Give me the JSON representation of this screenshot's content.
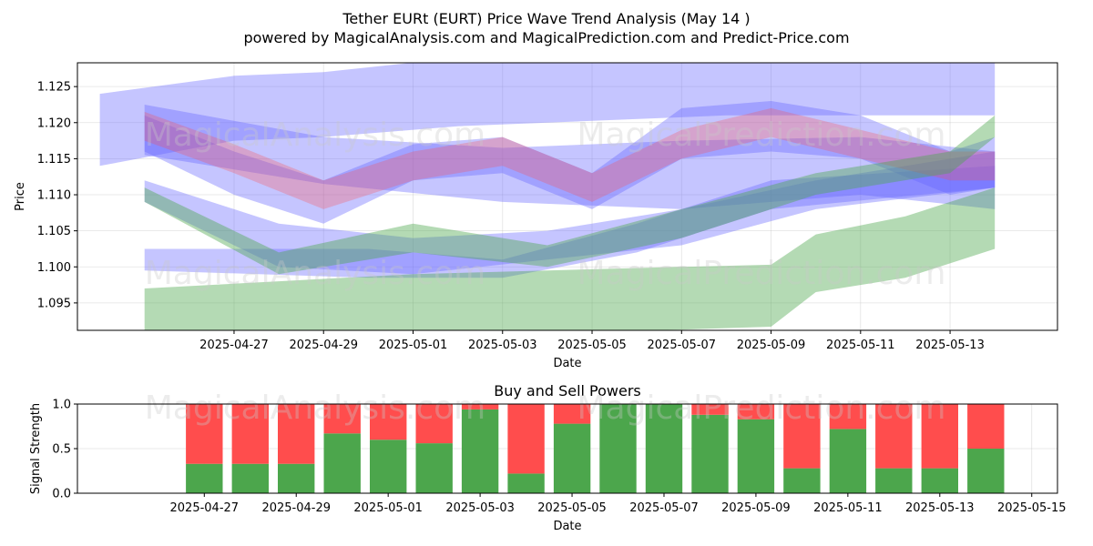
{
  "title": "Tether EURt (EURT) Price Wave Trend Analysis (May 14 )",
  "subtitle": "powered by MagicalAnalysis.com and MagicalPrediction.com and Predict-Price.com",
  "watermarks": [
    "MagicalAnalysis.com",
    "MagicalPrediction.com"
  ],
  "colors": {
    "blue": "#6666ff",
    "green": "#4ca64c",
    "red": "#ff4d4d"
  },
  "chart_data": [
    {
      "type": "area",
      "xlabel": "Date",
      "ylabel": "Price",
      "ylim": [
        1.0912,
        1.1283
      ],
      "xlim": [
        "2025-04-25",
        "2025-05-14"
      ],
      "x_ticks": [
        "2025-04-27",
        "2025-04-29",
        "2025-05-01",
        "2025-05-03",
        "2025-05-05",
        "2025-05-07",
        "2025-05-09",
        "2025-05-11",
        "2025-05-13"
      ],
      "y_ticks": [
        1.095,
        1.1,
        1.105,
        1.11,
        1.115,
        1.12,
        1.125
      ],
      "grid": true,
      "series": [
        {
          "color": "blue",
          "x": [
            "2025-04-24",
            "2025-04-27",
            "2025-04-29",
            "2025-05-02",
            "2025-05-04",
            "2025-05-08",
            "2025-05-11",
            "2025-05-14"
          ],
          "upper": [
            1.124,
            1.1265,
            1.127,
            1.129,
            1.129,
            1.129,
            1.129,
            1.129
          ],
          "lower": [
            1.114,
            1.1175,
            1.118,
            1.1195,
            1.12,
            1.121,
            1.121,
            1.121
          ]
        },
        {
          "color": "blue",
          "x": [
            "2025-04-25",
            "2025-04-29",
            "2025-05-03",
            "2025-05-07",
            "2025-05-11",
            "2025-05-14"
          ],
          "upper": [
            1.1225,
            1.118,
            1.1165,
            1.1175,
            1.118,
            1.116
          ],
          "lower": [
            1.1155,
            1.1115,
            1.109,
            1.108,
            1.11,
            1.108
          ]
        },
        {
          "color": "blue",
          "x": [
            "2025-04-25",
            "2025-04-27",
            "2025-04-29",
            "2025-05-01",
            "2025-05-03",
            "2025-05-05",
            "2025-05-07",
            "2025-05-09",
            "2025-05-11",
            "2025-05-13",
            "2025-05-14"
          ],
          "upper": [
            1.121,
            1.116,
            1.112,
            1.117,
            1.118,
            1.113,
            1.122,
            1.123,
            1.121,
            1.116,
            1.118
          ],
          "lower": [
            1.116,
            1.11,
            1.106,
            1.112,
            1.113,
            1.108,
            1.115,
            1.116,
            1.115,
            1.11,
            1.111
          ]
        },
        {
          "color": "blue",
          "x": [
            "2025-04-25",
            "2025-04-28",
            "2025-05-01",
            "2025-05-04",
            "2025-05-07",
            "2025-05-10",
            "2025-05-14"
          ],
          "upper": [
            1.112,
            1.106,
            1.104,
            1.105,
            1.108,
            1.112,
            1.116
          ],
          "lower": [
            1.109,
            1.1,
            1.099,
            1.101,
            1.103,
            1.108,
            1.111
          ]
        },
        {
          "color": "blue",
          "x": [
            "2025-04-25",
            "2025-04-30",
            "2025-05-03",
            "2025-05-06",
            "2025-05-09",
            "2025-05-14"
          ],
          "upper": [
            1.1025,
            1.1025,
            1.101,
            1.106,
            1.112,
            1.114
          ],
          "lower": [
            1.0995,
            1.0985,
            1.0985,
            1.102,
            1.108,
            1.111
          ]
        },
        {
          "color": "red",
          "x": [
            "2025-04-25",
            "2025-04-27",
            "2025-04-29",
            "2025-04-31",
            "2025-05-03",
            "2025-05-05",
            "2025-05-07",
            "2025-05-09",
            "2025-05-11",
            "2025-05-13",
            "2025-05-14"
          ],
          "upper": [
            1.1215,
            1.117,
            1.112,
            1.116,
            1.118,
            1.113,
            1.119,
            1.122,
            1.119,
            1.116,
            1.116
          ],
          "lower": [
            1.1175,
            1.113,
            1.108,
            1.112,
            1.114,
            1.109,
            1.115,
            1.118,
            1.115,
            1.112,
            1.112
          ]
        },
        {
          "color": "green",
          "x": [
            "2025-04-25",
            "2025-04-28",
            "2025-05-01",
            "2025-05-04",
            "2025-05-07",
            "2025-05-09",
            "2025-05-10",
            "2025-05-12",
            "2025-05-14"
          ],
          "upper": [
            1.097,
            1.098,
            1.099,
            1.0995,
            1.1,
            1.1003,
            1.1045,
            1.107,
            1.111
          ],
          "lower": [
            1.091,
            1.091,
            1.091,
            1.091,
            1.0913,
            1.0917,
            1.0965,
            1.0985,
            1.1025
          ]
        },
        {
          "color": "green",
          "x": [
            "2025-04-25",
            "2025-04-28",
            "2025-05-01",
            "2025-05-04",
            "2025-05-07",
            "2025-05-10",
            "2025-05-13",
            "2025-05-14"
          ],
          "upper": [
            1.111,
            1.102,
            1.106,
            1.103,
            1.108,
            1.113,
            1.116,
            1.121
          ],
          "lower": [
            1.109,
            1.099,
            1.102,
            1.1,
            1.104,
            1.11,
            1.113,
            1.118
          ]
        }
      ]
    },
    {
      "type": "bar",
      "title": "Buy and Sell Powers",
      "xlabel": "Date",
      "ylabel": "Signal Strength",
      "ylim": [
        0,
        1.0
      ],
      "xlim": [
        "2025-04-25",
        "2025-05-15"
      ],
      "x_ticks": [
        "2025-04-27",
        "2025-04-29",
        "2025-05-01",
        "2025-05-03",
        "2025-05-05",
        "2025-05-07",
        "2025-05-09",
        "2025-05-11",
        "2025-05-13",
        "2025-05-15"
      ],
      "y_ticks": [
        0.0,
        0.5,
        1.0
      ],
      "y_tick_labels": [
        "0.0",
        "0.5",
        "1.0"
      ],
      "grid": true,
      "categories": [
        "2025-04-27",
        "2025-04-28",
        "2025-04-29",
        "2025-04-30",
        "2025-05-01",
        "2025-05-02",
        "2025-05-03",
        "2025-05-04",
        "2025-05-05",
        "2025-05-06",
        "2025-05-07",
        "2025-05-08",
        "2025-05-09",
        "2025-05-10",
        "2025-05-11",
        "2025-05-12",
        "2025-05-13",
        "2025-05-14"
      ],
      "series": [
        {
          "color": "green",
          "values": [
            0.33,
            0.33,
            0.33,
            0.67,
            0.6,
            0.56,
            0.94,
            0.22,
            0.78,
            1.0,
            1.0,
            0.88,
            0.83,
            0.28,
            0.72,
            0.28,
            0.28,
            0.5
          ]
        },
        {
          "color": "red",
          "values": [
            0.67,
            0.67,
            0.67,
            0.33,
            0.4,
            0.44,
            0.06,
            0.78,
            0.22,
            0.0,
            0.0,
            0.12,
            0.17,
            0.72,
            0.28,
            0.72,
            0.72,
            0.5
          ]
        }
      ]
    }
  ]
}
